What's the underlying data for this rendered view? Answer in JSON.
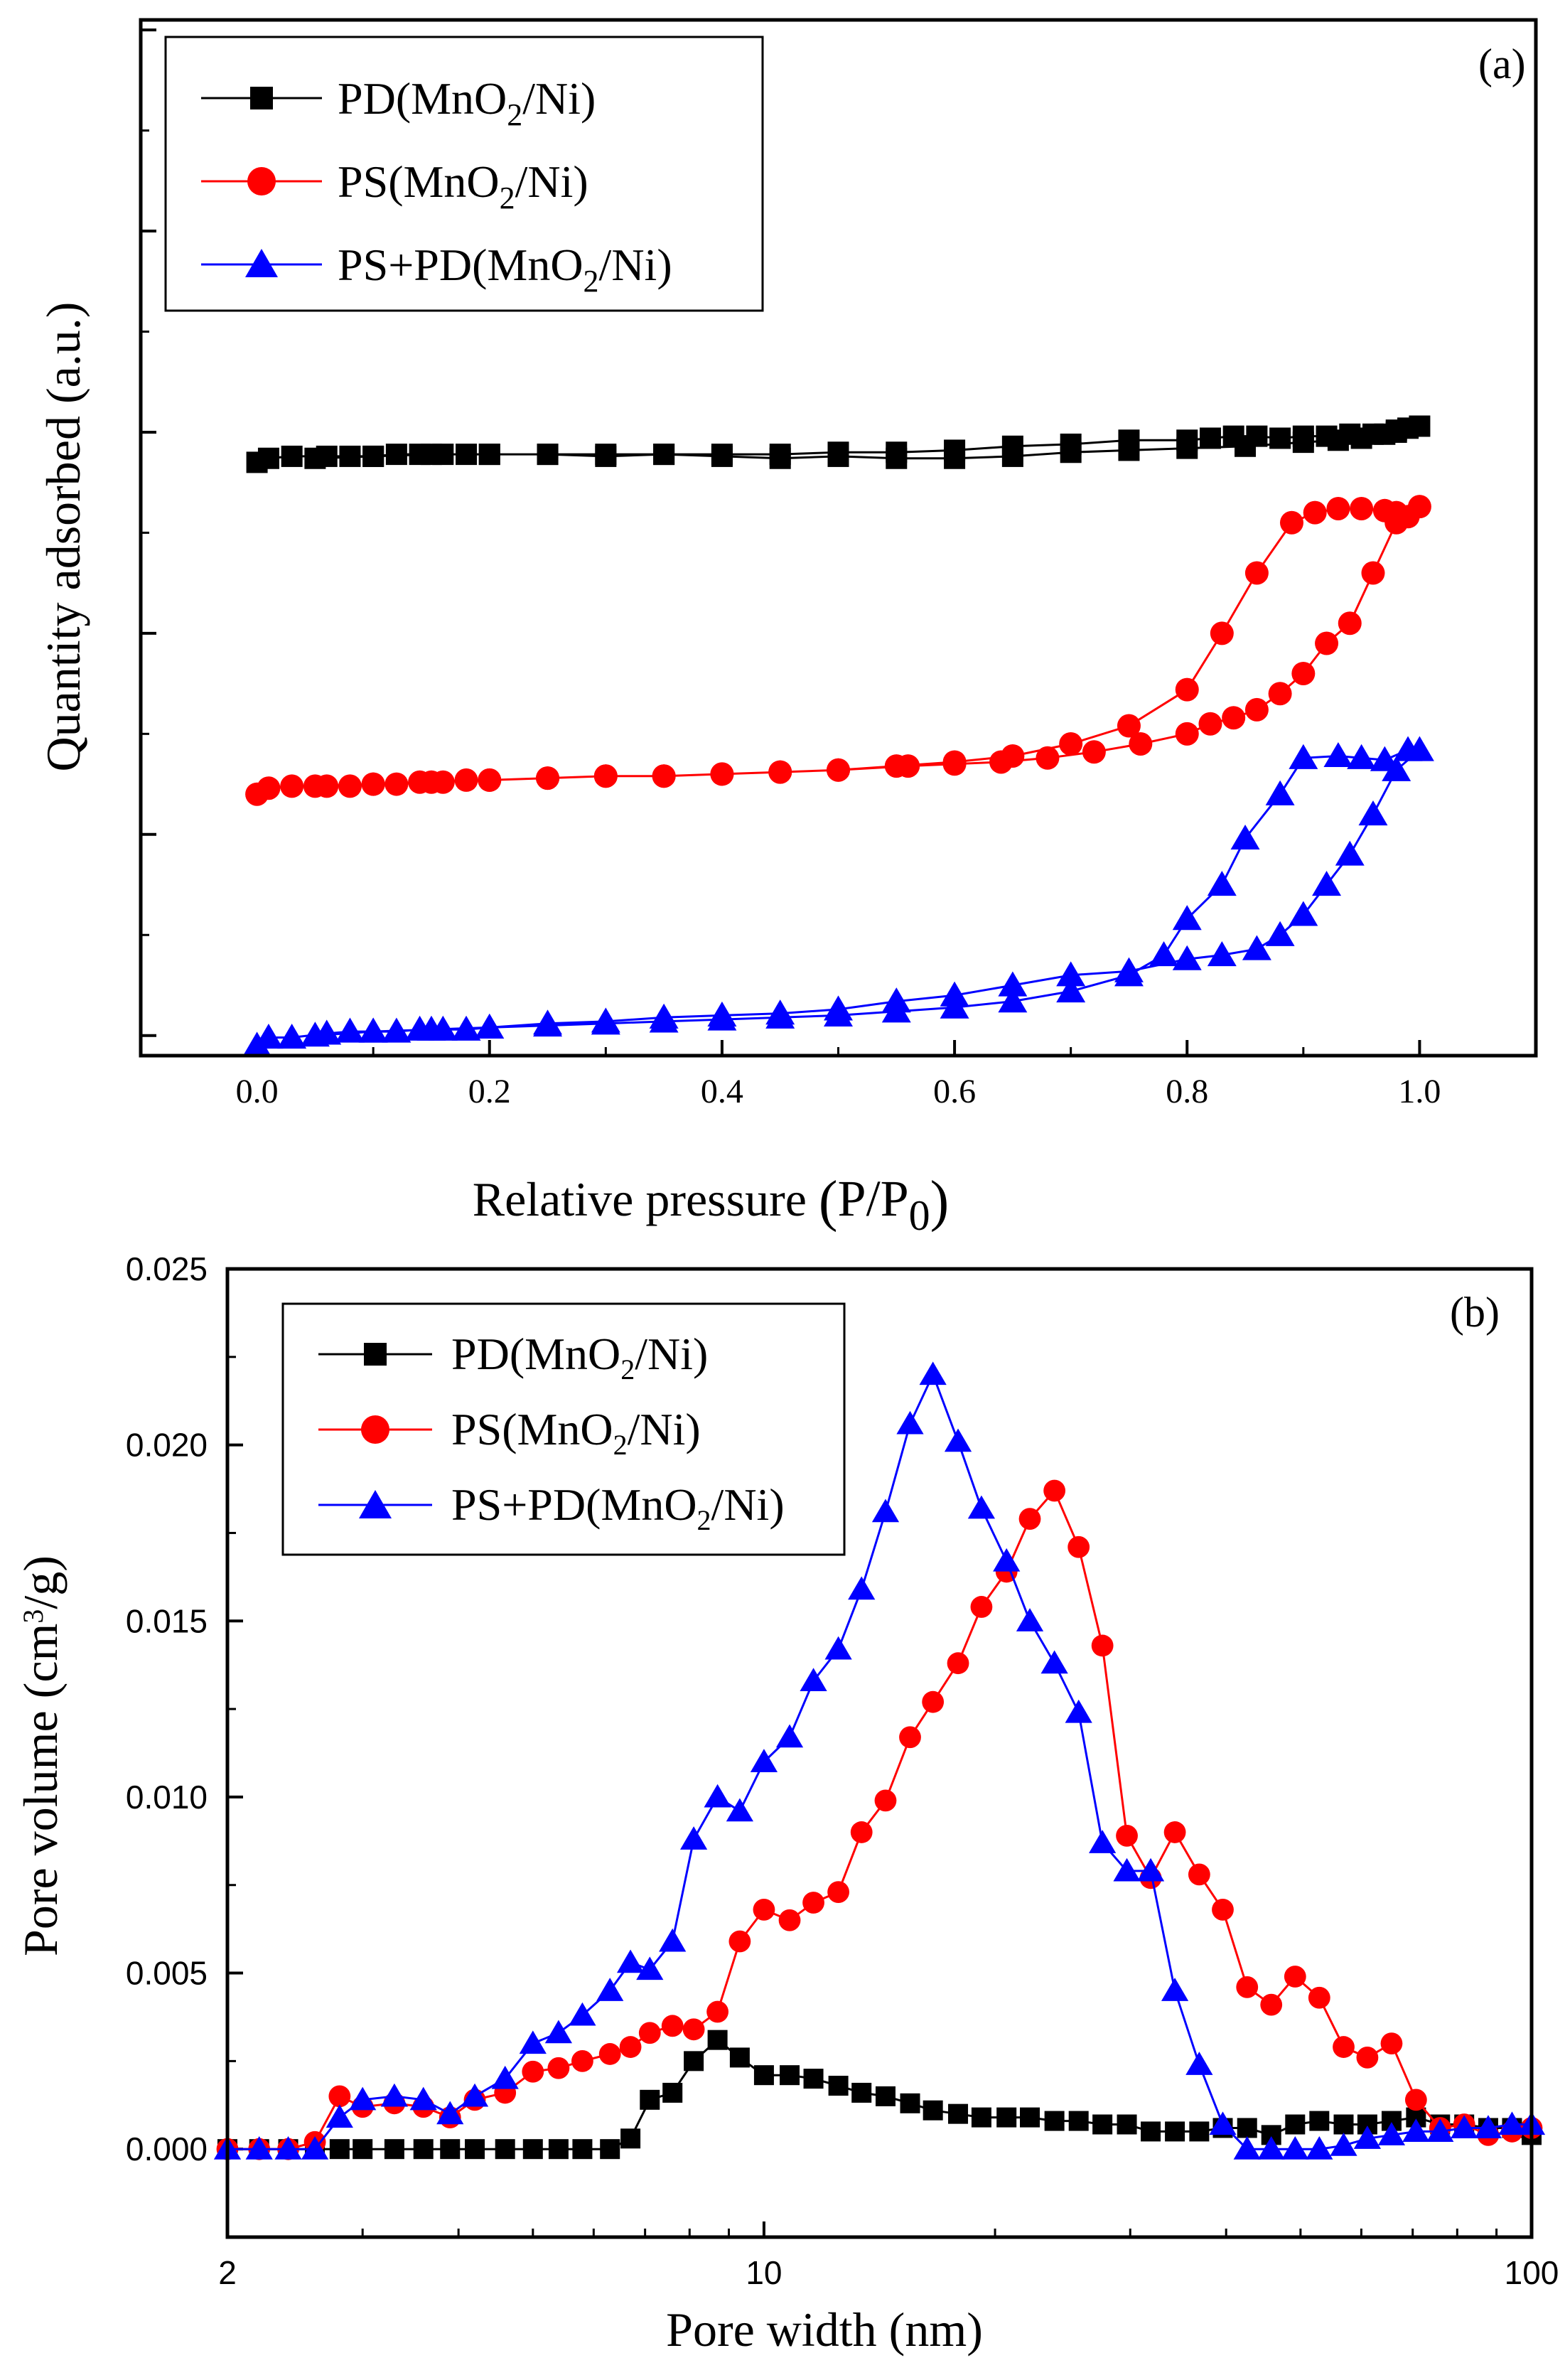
{
  "chart_data": [
    {
      "panel": "(a)",
      "type": "line",
      "title": "",
      "xlabel": "Relative pressure (P/P0)",
      "ylabel": "Quantity adsorbed (a.u.)",
      "xlim": [
        -0.1,
        1.1
      ],
      "ylim": [
        -0.1,
        5.05
      ],
      "x_ticks": [
        "0.0",
        "0.2",
        "0.4",
        "0.6",
        "0.8",
        "1.0"
      ],
      "y_tick_labels_shown": false,
      "legend_position": "top-left",
      "series": [
        {
          "name": "PD(MnO2/Ni)",
          "color": "#000000",
          "marker": "square",
          "x": [
            0.0,
            0.01,
            0.03,
            0.06,
            0.08,
            0.1,
            0.12,
            0.14,
            0.16,
            0.18,
            0.2,
            0.25,
            0.3,
            0.35,
            0.4,
            0.45,
            0.5,
            0.55,
            0.6,
            0.65,
            0.7,
            0.75,
            0.8,
            0.85,
            0.9,
            0.93,
            0.95,
            0.97,
            0.98,
            0.99,
            1.0,
            0.98,
            0.96,
            0.94,
            0.92,
            0.9,
            0.88,
            0.86,
            0.84,
            0.82,
            0.8,
            0.75,
            0.7,
            0.65,
            0.6,
            0.55,
            0.5,
            0.45,
            0.4,
            0.35,
            0.3,
            0.25,
            0.2,
            0.15,
            0.1,
            0.05
          ],
          "y": [
            2.85,
            2.87,
            2.88,
            2.88,
            2.88,
            2.88,
            2.89,
            2.89,
            2.89,
            2.89,
            2.89,
            2.89,
            2.88,
            2.89,
            2.88,
            2.87,
            2.88,
            2.87,
            2.87,
            2.88,
            2.9,
            2.91,
            2.92,
            2.93,
            2.95,
            2.96,
            2.97,
            2.99,
            3.01,
            3.02,
            3.03,
            3.0,
            2.99,
            2.99,
            2.98,
            2.98,
            2.97,
            2.98,
            2.98,
            2.97,
            2.96,
            2.96,
            2.94,
            2.93,
            2.91,
            2.9,
            2.9,
            2.89,
            2.89,
            2.89,
            2.89,
            2.89,
            2.89,
            2.89,
            2.88,
            2.87
          ]
        },
        {
          "name": "PS(MnO2/Ni)",
          "color": "#ff0000",
          "marker": "circle",
          "x": [
            0.0,
            0.01,
            0.03,
            0.06,
            0.08,
            0.1,
            0.12,
            0.14,
            0.16,
            0.18,
            0.2,
            0.25,
            0.3,
            0.35,
            0.4,
            0.45,
            0.5,
            0.55,
            0.6,
            0.65,
            0.7,
            0.75,
            0.8,
            0.83,
            0.86,
            0.89,
            0.91,
            0.93,
            0.95,
            0.97,
            0.98,
            0.99,
            1.0,
            0.98,
            0.96,
            0.94,
            0.92,
            0.9,
            0.88,
            0.86,
            0.84,
            0.82,
            0.8,
            0.76,
            0.72,
            0.68,
            0.64,
            0.6,
            0.56,
            0.5,
            0.45,
            0.4,
            0.35,
            0.3,
            0.25,
            0.2,
            0.15,
            0.1,
            0.05
          ],
          "y": [
            1.2,
            1.23,
            1.24,
            1.24,
            1.24,
            1.25,
            1.25,
            1.26,
            1.26,
            1.27,
            1.27,
            1.28,
            1.29,
            1.29,
            1.3,
            1.31,
            1.32,
            1.34,
            1.36,
            1.39,
            1.45,
            1.54,
            1.72,
            2.0,
            2.3,
            2.55,
            2.6,
            2.62,
            2.62,
            2.61,
            2.6,
            2.58,
            2.63,
            2.55,
            2.3,
            2.05,
            1.95,
            1.8,
            1.7,
            1.62,
            1.58,
            1.55,
            1.5,
            1.45,
            1.41,
            1.38,
            1.36,
            1.35,
            1.34,
            1.32,
            1.31,
            1.3,
            1.29,
            1.29,
            1.28,
            1.27,
            1.26,
            1.25,
            1.24
          ]
        },
        {
          "name": "PS+PD(MnO2/Ni)",
          "color": "#0000ff",
          "marker": "triangle",
          "x": [
            0.0,
            0.01,
            0.03,
            0.06,
            0.08,
            0.1,
            0.12,
            0.14,
            0.16,
            0.18,
            0.2,
            0.25,
            0.3,
            0.35,
            0.4,
            0.45,
            0.5,
            0.55,
            0.6,
            0.65,
            0.7,
            0.75,
            0.78,
            0.8,
            0.83,
            0.85,
            0.88,
            0.9,
            0.93,
            0.95,
            0.97,
            0.99,
            1.0,
            0.98,
            0.96,
            0.94,
            0.92,
            0.9,
            0.88,
            0.86,
            0.83,
            0.8,
            0.75,
            0.7,
            0.65,
            0.6,
            0.55,
            0.5,
            0.45,
            0.4,
            0.35,
            0.3,
            0.25,
            0.2,
            0.15,
            0.1,
            0.05
          ],
          "y": [
            -0.05,
            -0.01,
            -0.01,
            0.01,
            0.02,
            0.02,
            0.02,
            0.03,
            0.03,
            0.03,
            0.04,
            0.05,
            0.06,
            0.07,
            0.08,
            0.09,
            0.1,
            0.12,
            0.14,
            0.17,
            0.22,
            0.3,
            0.4,
            0.58,
            0.75,
            0.98,
            1.2,
            1.38,
            1.39,
            1.38,
            1.37,
            1.42,
            1.42,
            1.32,
            1.1,
            0.9,
            0.75,
            0.6,
            0.5,
            0.43,
            0.4,
            0.38,
            0.32,
            0.3,
            0.25,
            0.2,
            0.17,
            0.13,
            0.11,
            0.1,
            0.09,
            0.07,
            0.06,
            0.04,
            0.03,
            0.02,
            0.0
          ]
        }
      ]
    },
    {
      "panel": "(b)",
      "type": "line",
      "title": "",
      "xlabel": "Pore width (nm)",
      "ylabel": "Pore volume (cm3/g)",
      "x_scale": "log",
      "xlim": [
        2,
        100
      ],
      "ylim": [
        -0.0025,
        0.025
      ],
      "x_ticks": [
        "2",
        "10",
        "100"
      ],
      "y_ticks": [
        "0.000",
        "0.005",
        "0.010",
        "0.015",
        "0.020",
        "0.025"
      ],
      "legend_position": "top-left",
      "series": [
        {
          "name": "PD(MnO2/Ni)",
          "color": "#000000",
          "marker": "square",
          "x": [
            2.0,
            2.2,
            2.4,
            2.6,
            2.8,
            3.0,
            3.3,
            3.6,
            3.9,
            4.2,
            4.6,
            5.0,
            5.4,
            5.8,
            6.3,
            6.7,
            7.1,
            7.6,
            8.1,
            8.7,
            9.3,
            10.0,
            10.8,
            11.6,
            12.5,
            13.4,
            14.4,
            15.5,
            16.6,
            17.9,
            19.2,
            20.7,
            22.2,
            23.9,
            25.7,
            27.6,
            29.7,
            31.9,
            34.3,
            36.9,
            39.6,
            42.6,
            45.8,
            49.2,
            52.9,
            56.9,
            61.1,
            65.7,
            70.7,
            76.0,
            81.7,
            87.8,
            94.3,
            100.0
          ],
          "y": [
            0.0,
            0.0,
            0.0,
            0.0,
            0.0,
            0.0,
            0.0,
            0.0,
            0.0,
            0.0,
            0.0,
            0.0,
            0.0,
            0.0,
            0.0,
            0.0003,
            0.0014,
            0.0016,
            0.0025,
            0.0031,
            0.0026,
            0.0021,
            0.0021,
            0.002,
            0.0018,
            0.0016,
            0.0015,
            0.0013,
            0.0011,
            0.001,
            0.0009,
            0.0009,
            0.0009,
            0.0008,
            0.0008,
            0.0007,
            0.0007,
            0.0005,
            0.0005,
            0.0005,
            0.0006,
            0.0006,
            0.0004,
            0.0007,
            0.0008,
            0.0007,
            0.0007,
            0.0008,
            0.0009,
            0.0007,
            0.0007,
            0.0006,
            0.0006,
            0.0004
          ]
        },
        {
          "name": "PS(MnO2/Ni)",
          "color": "#ff0000",
          "marker": "circle",
          "x": [
            2.0,
            2.2,
            2.4,
            2.6,
            2.8,
            3.0,
            3.3,
            3.6,
            3.9,
            4.2,
            4.6,
            5.0,
            5.4,
            5.8,
            6.3,
            6.7,
            7.1,
            7.6,
            8.1,
            8.7,
            9.3,
            10.0,
            10.8,
            11.6,
            12.5,
            13.4,
            14.4,
            15.5,
            16.6,
            17.9,
            19.2,
            20.7,
            22.2,
            23.9,
            25.7,
            27.6,
            29.7,
            31.9,
            34.3,
            36.9,
            39.6,
            42.6,
            45.8,
            49.2,
            52.9,
            56.9,
            61.1,
            65.7,
            70.7,
            76.0,
            81.7,
            87.8,
            94.3,
            100.0
          ],
          "y": [
            0.0,
            0.0,
            0.0,
            0.0002,
            0.0015,
            0.0012,
            0.0013,
            0.0012,
            0.0009,
            0.0014,
            0.0016,
            0.0022,
            0.0023,
            0.0025,
            0.0027,
            0.0029,
            0.0033,
            0.0035,
            0.0034,
            0.0039,
            0.0059,
            0.0068,
            0.0065,
            0.007,
            0.0073,
            0.009,
            0.0099,
            0.0117,
            0.0127,
            0.0138,
            0.0154,
            0.0164,
            0.0179,
            0.0187,
            0.0171,
            0.0143,
            0.0089,
            0.0077,
            0.009,
            0.0078,
            0.0068,
            0.0046,
            0.0041,
            0.0049,
            0.0043,
            0.0029,
            0.0026,
            0.003,
            0.0014,
            0.0006,
            0.0007,
            0.0004,
            0.0005,
            0.0006
          ]
        },
        {
          "name": "PS+PD(MnO2/Ni)",
          "color": "#0000ff",
          "marker": "triangle",
          "x": [
            2.0,
            2.2,
            2.4,
            2.6,
            2.8,
            3.0,
            3.3,
            3.6,
            3.9,
            4.2,
            4.6,
            5.0,
            5.4,
            5.8,
            6.3,
            6.7,
            7.1,
            7.6,
            8.1,
            8.7,
            9.3,
            10.0,
            10.8,
            11.6,
            12.5,
            13.4,
            14.4,
            15.5,
            16.6,
            17.9,
            19.2,
            20.7,
            22.2,
            23.9,
            25.7,
            27.6,
            29.7,
            31.9,
            34.3,
            36.9,
            39.6,
            42.6,
            45.8,
            49.2,
            52.9,
            56.9,
            61.1,
            65.7,
            70.7,
            76.0,
            81.7,
            87.8,
            94.3,
            100.0
          ],
          "y": [
            0.0,
            0.0,
            0.0,
            0.0,
            0.0009,
            0.0014,
            0.0015,
            0.0014,
            0.001,
            0.0015,
            0.002,
            0.003,
            0.0033,
            0.0038,
            0.0045,
            0.0053,
            0.0051,
            0.0059,
            0.0088,
            0.01,
            0.0096,
            0.011,
            0.0117,
            0.0133,
            0.0142,
            0.0159,
            0.0181,
            0.0206,
            0.022,
            0.0201,
            0.0182,
            0.0167,
            0.015,
            0.0138,
            0.0124,
            0.0087,
            0.0079,
            0.0079,
            0.0045,
            0.0024,
            0.0007,
            0.0,
            0.0,
            0.0,
            0.0,
            0.0001,
            0.0003,
            0.0004,
            0.0005,
            0.0005,
            0.0006,
            0.0006,
            0.0007,
            0.0007
          ]
        }
      ]
    }
  ],
  "panel_a": {
    "label": "(a)",
    "x_ticks": [
      "0.0",
      "0.2",
      "0.4",
      "0.6",
      "0.8",
      "1.0"
    ],
    "ylabel": "Quantity adsorbed (a.u.)",
    "xlabel_main": "Relative pressure ",
    "xlabel_open": "(",
    "xlabel_P": "P/P",
    "xlabel_sub": "0",
    "xlabel_close": ")",
    "legend": [
      {
        "pre": "PD(MnO",
        "sub": "2",
        "post": "/Ni)"
      },
      {
        "pre": "PS(MnO",
        "sub": "2",
        "post": "/Ni)"
      },
      {
        "pre": "PS+PD(MnO",
        "sub": "2",
        "post": "/Ni)"
      }
    ]
  },
  "panel_b": {
    "label": "(b)",
    "x_ticks": [
      "2",
      "10",
      "100"
    ],
    "y_ticks": [
      "0.000",
      "0.005",
      "0.010",
      "0.015",
      "0.020",
      "0.025"
    ],
    "xlabel": "Pore width (nm)",
    "ylabel_pre": "Pore volume (cm",
    "ylabel_sup": "3",
    "ylabel_post": "/g)",
    "legend": [
      {
        "pre": "PD(MnO",
        "sub": "2",
        "post": "/Ni)"
      },
      {
        "pre": "PS(MnO",
        "sub": "2",
        "post": "/Ni)"
      },
      {
        "pre": "PS+PD(MnO",
        "sub": "2",
        "post": "/Ni)"
      }
    ]
  }
}
